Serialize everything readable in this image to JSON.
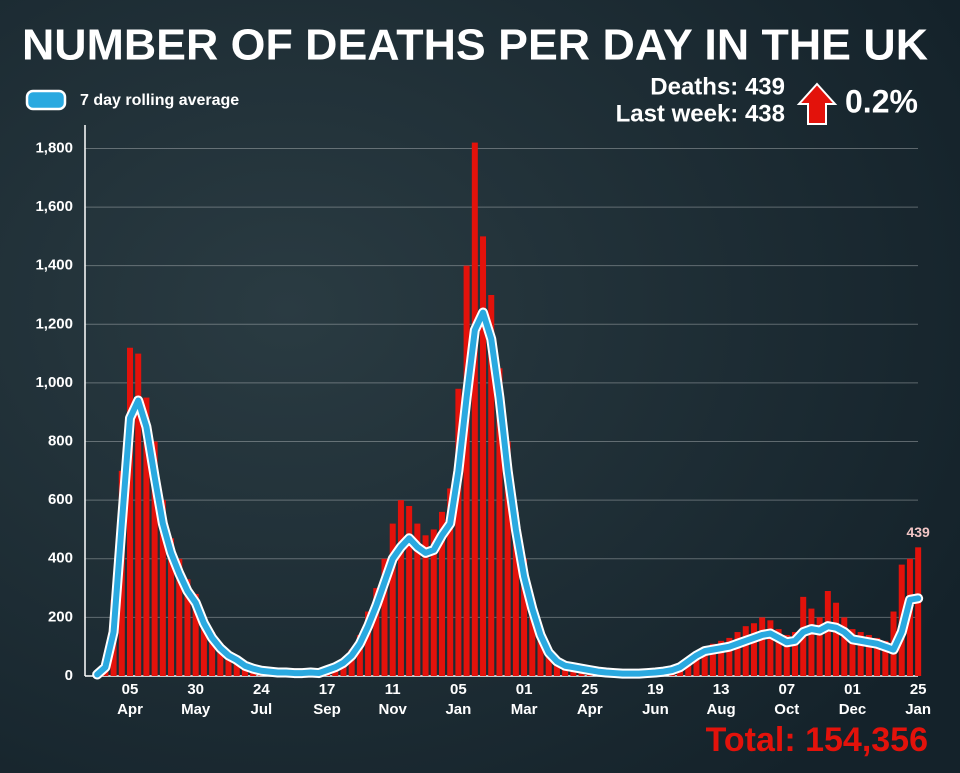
{
  "chart_data": {
    "type": "bar",
    "title": "NUMBER OF DEATHS PER DAY IN THE UK",
    "annotations": {
      "deaths": "Deaths: 439",
      "last_week": "Last week: 438",
      "change": "0.2%",
      "total": "Total: 154,356"
    },
    "categories": [
      null,
      null,
      null,
      null,
      {
        "day": "05",
        "month": "Apr"
      },
      null,
      null,
      null,
      null,
      null,
      null,
      null,
      {
        "day": "30",
        "month": "May"
      },
      null,
      null,
      null,
      null,
      null,
      null,
      null,
      {
        "day": "24",
        "month": "Jul"
      },
      null,
      null,
      null,
      null,
      null,
      null,
      null,
      {
        "day": "17",
        "month": "Sep"
      },
      null,
      null,
      null,
      null,
      null,
      null,
      null,
      {
        "day": "11",
        "month": "Nov"
      },
      null,
      null,
      null,
      null,
      null,
      null,
      null,
      {
        "day": "05",
        "month": "Jan"
      },
      null,
      null,
      null,
      null,
      null,
      null,
      null,
      {
        "day": "01",
        "month": "Mar"
      },
      null,
      null,
      null,
      null,
      null,
      null,
      null,
      {
        "day": "25",
        "month": "Apr"
      },
      null,
      null,
      null,
      null,
      null,
      null,
      null,
      {
        "day": "19",
        "month": "Jun"
      },
      null,
      null,
      null,
      null,
      null,
      null,
      null,
      {
        "day": "13",
        "month": "Aug"
      },
      null,
      null,
      null,
      null,
      null,
      null,
      null,
      {
        "day": "07",
        "month": "Oct"
      },
      null,
      null,
      null,
      null,
      null,
      null,
      null,
      {
        "day": "01",
        "month": "Dec"
      },
      null,
      null,
      null,
      null,
      null,
      null,
      null,
      {
        "day": "25",
        "month": "Jan"
      }
    ],
    "series": [
      {
        "color": "#e3120b",
        "values": [
          10,
          60,
          260,
          700,
          1120,
          1100,
          950,
          800,
          600,
          470,
          400,
          330,
          280,
          200,
          150,
          110,
          80,
          60,
          40,
          30,
          20,
          18,
          15,
          14,
          12,
          12,
          15,
          14,
          30,
          40,
          60,
          90,
          140,
          220,
          300,
          400,
          520,
          600,
          580,
          520,
          480,
          500,
          560,
          640,
          980,
          1400,
          1820,
          1500,
          1300,
          1050,
          800,
          560,
          400,
          260,
          160,
          90,
          60,
          40,
          35,
          28,
          22,
          18,
          14,
          12,
          10,
          10,
          10,
          12,
          15,
          18,
          25,
          40,
          60,
          80,
          100,
          110,
          120,
          130,
          150,
          170,
          180,
          200,
          190,
          160,
          140,
          150,
          270,
          230,
          200,
          290,
          250,
          200,
          160,
          150,
          140,
          130,
          120,
          220,
          380,
          400,
          439
        ]
      },
      {
        "name": "7 day rolling average",
        "color": "#2aa9e0",
        "values": [
          5,
          30,
          150,
          520,
          880,
          940,
          850,
          680,
          520,
          420,
          350,
          290,
          250,
          180,
          130,
          95,
          70,
          55,
          35,
          25,
          18,
          15,
          12,
          12,
          10,
          10,
          12,
          10,
          20,
          30,
          45,
          70,
          110,
          170,
          240,
          320,
          400,
          440,
          470,
          440,
          420,
          430,
          480,
          520,
          700,
          950,
          1180,
          1240,
          1150,
          950,
          700,
          500,
          340,
          230,
          140,
          80,
          50,
          35,
          30,
          25,
          20,
          15,
          12,
          10,
          8,
          8,
          8,
          10,
          12,
          15,
          20,
          30,
          50,
          70,
          85,
          90,
          95,
          100,
          110,
          120,
          130,
          140,
          145,
          130,
          115,
          120,
          150,
          160,
          155,
          170,
          165,
          150,
          125,
          120,
          115,
          110,
          100,
          90,
          150,
          260,
          265
        ]
      }
    ],
    "ylim": [
      0,
      1880
    ],
    "yticks": [
      0,
      200,
      400,
      600,
      800,
      {
        "value": 1000,
        "label": "1,000"
      },
      {
        "value": 1200,
        "label": "1,200"
      },
      {
        "value": 1400,
        "label": "1,400"
      },
      {
        "value": 1600,
        "label": "1,600"
      },
      {
        "value": 1800,
        "label": "1,800"
      }
    ],
    "grid": true
  }
}
